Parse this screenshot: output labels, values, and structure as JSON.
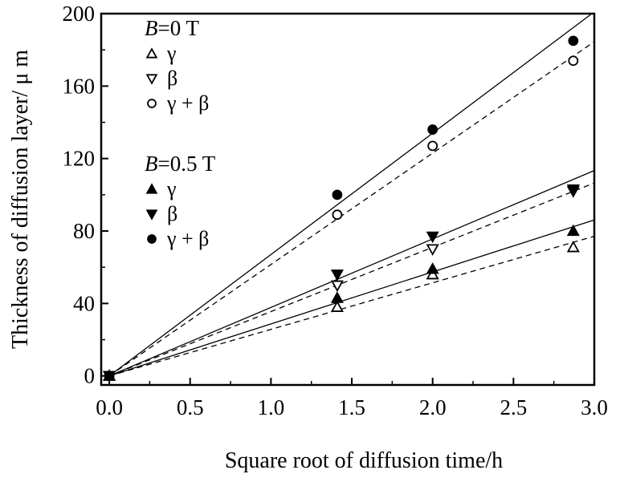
{
  "chart_data": {
    "type": "scatter",
    "xlabel": "Square root of diffusion time/h",
    "ylabel": "Thickness of diffusion layer/ μ m",
    "xlim": [
      -0.05,
      3.0
    ],
    "ylim": [
      -5,
      200
    ],
    "x_ticks": [
      "0.0",
      "0.5",
      "1.0",
      "1.5",
      "2.0",
      "2.5",
      "3.0"
    ],
    "y_ticks": [
      "0",
      "40",
      "80",
      "120",
      "160",
      "200"
    ],
    "legend_placement": "top-left",
    "grid": false,
    "legend_groups": [
      {
        "title_var": "B",
        "title_value": "=0 T",
        "items": [
          {
            "marker": "triangle-up-open",
            "label": "γ"
          },
          {
            "marker": "triangle-down-open",
            "label": "β"
          },
          {
            "marker": "circle-open",
            "label": "γ + β"
          }
        ]
      },
      {
        "title_var": "B",
        "title_value": "=0.5 T",
        "items": [
          {
            "marker": "triangle-up-filled",
            "label": "γ"
          },
          {
            "marker": "triangle-down-filled",
            "label": "β"
          },
          {
            "marker": "circle-filled",
            "label": "γ + β"
          }
        ]
      }
    ],
    "series": [
      {
        "field": "0 T",
        "phase": "γ",
        "marker": "triangle-up-open",
        "x": [
          0,
          1.41,
          2.0,
          2.87
        ],
        "y": [
          0,
          38,
          56,
          71
        ],
        "fit_slope": 25.7,
        "fit_style": "dashed"
      },
      {
        "field": "0 T",
        "phase": "β",
        "marker": "triangle-down-open",
        "x": [
          0,
          1.41,
          2.0,
          2.87
        ],
        "y": [
          0,
          50,
          70,
          102
        ],
        "fit_slope": 35.5,
        "fit_style": "dashed"
      },
      {
        "field": "0 T",
        "phase": "γ + β",
        "marker": "circle-open",
        "x": [
          0,
          1.41,
          2.0,
          2.87
        ],
        "y": [
          0,
          89,
          127,
          174
        ],
        "fit_slope": 61.5,
        "fit_style": "dashed"
      },
      {
        "field": "0.5 T",
        "phase": "γ",
        "marker": "triangle-up-filled",
        "x": [
          0,
          1.41,
          2.0,
          2.87
        ],
        "y": [
          0,
          43,
          59,
          80
        ],
        "fit_slope": 28.7,
        "fit_style": "solid"
      },
      {
        "field": "0.5 T",
        "phase": "β",
        "marker": "triangle-down-filled",
        "x": [
          0,
          1.41,
          2.0,
          2.87
        ],
        "y": [
          0,
          56,
          77,
          103
        ],
        "fit_slope": 37.8,
        "fit_style": "solid"
      },
      {
        "field": "0.5 T",
        "phase": "γ + β",
        "marker": "circle-filled",
        "x": [
          0,
          1.41,
          2.0,
          2.87
        ],
        "y": [
          0,
          100,
          136,
          185
        ],
        "fit_slope": 67.0,
        "fit_style": "solid"
      }
    ]
  }
}
